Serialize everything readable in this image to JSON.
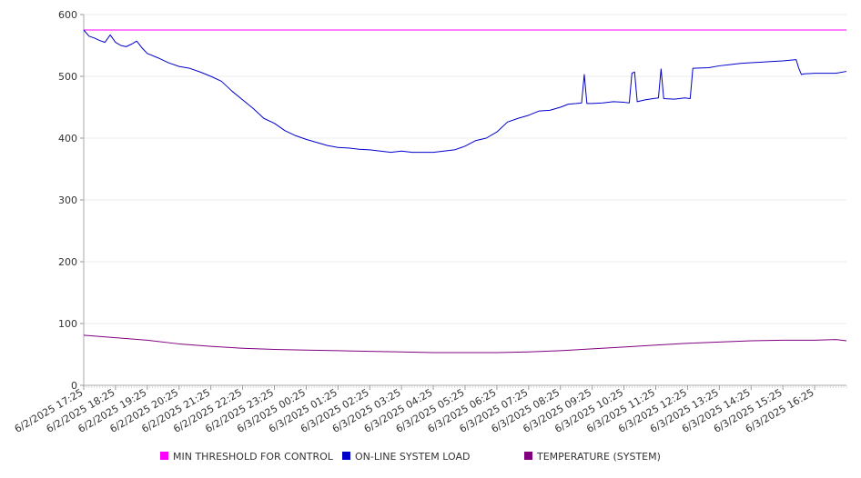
{
  "chart_data": {
    "type": "line",
    "title": "",
    "xlabel": "",
    "ylabel": "",
    "ylim": [
      0,
      600
    ],
    "y_ticks": [
      0,
      100,
      200,
      300,
      400,
      500,
      600
    ],
    "grid": "horizontal",
    "legend_position": "bottom",
    "x_tick_labels": [
      "6/2/2025 17:25",
      "6/2/2025 18:25",
      "6/2/2025 19:25",
      "6/2/2025 20:25",
      "6/2/2025 21:25",
      "6/2/2025 22:25",
      "6/2/2025 23:25",
      "6/3/2025 00:25",
      "6/3/2025 01:25",
      "6/3/2025 02:25",
      "6/3/2025 03:25",
      "6/3/2025 04:25",
      "6/3/2025 05:25",
      "6/3/2025 06:25",
      "6/3/2025 07:25",
      "6/3/2025 08:25",
      "6/3/2025 09:25",
      "6/3/2025 10:25",
      "6/3/2025 11:25",
      "6/3/2025 12:25",
      "6/3/2025 13:25",
      "6/3/2025 14:25",
      "6/3/2025 15:25",
      "6/3/2025 16:25"
    ],
    "x_start": "6/2/2025 17:25",
    "x_end": "6/3/2025 17:25",
    "series": [
      {
        "name": "MIN THRESHOLD FOR CONTROL",
        "color": "#ff00ff",
        "points": [
          [
            "6/2/2025 17:25",
            575
          ],
          [
            "6/3/2025 17:25",
            575
          ]
        ]
      },
      {
        "name": "ON-LINE SYSTEM LOAD",
        "color": "#0000cc",
        "points": [
          [
            "6/2/2025 17:25",
            575
          ],
          [
            "6/2/2025 17:35",
            565
          ],
          [
            "6/2/2025 17:45",
            562
          ],
          [
            "6/2/2025 17:55",
            558
          ],
          [
            "6/2/2025 18:05",
            555
          ],
          [
            "6/2/2025 18:15",
            567
          ],
          [
            "6/2/2025 18:25",
            555
          ],
          [
            "6/2/2025 18:35",
            550
          ],
          [
            "6/2/2025 18:45",
            548
          ],
          [
            "6/2/2025 18:55",
            552
          ],
          [
            "6/2/2025 19:05",
            557
          ],
          [
            "6/2/2025 19:15",
            546
          ],
          [
            "6/2/2025 19:25",
            537
          ],
          [
            "6/2/2025 19:45",
            530
          ],
          [
            "6/2/2025 20:05",
            522
          ],
          [
            "6/2/2025 20:25",
            516
          ],
          [
            "6/2/2025 20:45",
            513
          ],
          [
            "6/2/2025 21:05",
            507
          ],
          [
            "6/2/2025 21:25",
            500
          ],
          [
            "6/2/2025 21:45",
            492
          ],
          [
            "6/2/2025 22:05",
            476
          ],
          [
            "6/2/2025 22:25",
            462
          ],
          [
            "6/2/2025 22:45",
            448
          ],
          [
            "6/2/2025 23:05",
            432
          ],
          [
            "6/2/2025 23:25",
            424
          ],
          [
            "6/2/2025 23:45",
            412
          ],
          [
            "6/3/2025 00:05",
            404
          ],
          [
            "6/3/2025 00:25",
            398
          ],
          [
            "6/3/2025 00:45",
            393
          ],
          [
            "6/3/2025 01:05",
            388
          ],
          [
            "6/3/2025 01:25",
            385
          ],
          [
            "6/3/2025 01:45",
            384
          ],
          [
            "6/3/2025 02:05",
            382
          ],
          [
            "6/3/2025 02:25",
            381
          ],
          [
            "6/3/2025 02:45",
            379
          ],
          [
            "6/3/2025 03:05",
            377
          ],
          [
            "6/3/2025 03:25",
            379
          ],
          [
            "6/3/2025 03:45",
            377
          ],
          [
            "6/3/2025 04:25",
            377
          ],
          [
            "6/3/2025 04:45",
            379
          ],
          [
            "6/3/2025 05:05",
            381
          ],
          [
            "6/3/2025 05:25",
            387
          ],
          [
            "6/3/2025 05:45",
            396
          ],
          [
            "6/3/2025 06:05",
            400
          ],
          [
            "6/3/2025 06:25",
            410
          ],
          [
            "6/3/2025 06:45",
            426
          ],
          [
            "6/3/2025 07:05",
            432
          ],
          [
            "6/3/2025 07:25",
            437
          ],
          [
            "6/3/2025 07:45",
            444
          ],
          [
            "6/3/2025 08:05",
            445
          ],
          [
            "6/3/2025 08:25",
            450
          ],
          [
            "6/3/2025 08:40",
            455
          ],
          [
            "6/3/2025 08:55",
            456
          ],
          [
            "6/3/2025 09:05",
            457
          ],
          [
            "6/3/2025 09:10",
            503
          ],
          [
            "6/3/2025 09:15",
            456
          ],
          [
            "6/3/2025 09:25",
            456
          ],
          [
            "6/3/2025 09:45",
            457
          ],
          [
            "6/3/2025 10:05",
            459
          ],
          [
            "6/3/2025 10:25",
            458
          ],
          [
            "6/3/2025 10:35",
            457
          ],
          [
            "6/3/2025 10:40",
            505
          ],
          [
            "6/3/2025 10:45",
            507
          ],
          [
            "6/3/2025 10:50",
            459
          ],
          [
            "6/3/2025 11:05",
            462
          ],
          [
            "6/3/2025 11:20",
            464
          ],
          [
            "6/3/2025 11:30",
            465
          ],
          [
            "6/3/2025 11:35",
            512
          ],
          [
            "6/3/2025 11:40",
            464
          ],
          [
            "6/3/2025 12:00",
            463
          ],
          [
            "6/3/2025 12:20",
            465
          ],
          [
            "6/3/2025 12:30",
            464
          ],
          [
            "6/3/2025 12:35",
            513
          ],
          [
            "6/3/2025 13:05",
            514
          ],
          [
            "6/3/2025 13:25",
            517
          ],
          [
            "6/3/2025 13:45",
            519
          ],
          [
            "6/3/2025 14:05",
            521
          ],
          [
            "6/3/2025 14:25",
            522
          ],
          [
            "6/3/2025 14:45",
            523
          ],
          [
            "6/3/2025 15:05",
            524
          ],
          [
            "6/3/2025 15:25",
            525
          ],
          [
            "6/3/2025 15:50",
            527
          ],
          [
            "6/3/2025 15:55",
            513
          ],
          [
            "6/3/2025 16:00",
            503
          ],
          [
            "6/3/2025 16:05",
            504
          ],
          [
            "6/3/2025 16:25",
            505
          ],
          [
            "6/3/2025 16:45",
            505
          ],
          [
            "6/3/2025 17:05",
            505
          ],
          [
            "6/3/2025 17:25",
            508
          ]
        ]
      },
      {
        "name": "TEMPERATURE (SYSTEM)",
        "color": "#800080",
        "points": [
          [
            "6/2/2025 17:25",
            81
          ],
          [
            "6/2/2025 18:25",
            77
          ],
          [
            "6/2/2025 19:25",
            73
          ],
          [
            "6/2/2025 20:25",
            67
          ],
          [
            "6/2/2025 21:25",
            63
          ],
          [
            "6/2/2025 22:25",
            60
          ],
          [
            "6/2/2025 23:25",
            58
          ],
          [
            "6/3/2025 00:25",
            57
          ],
          [
            "6/3/2025 01:25",
            56
          ],
          [
            "6/3/2025 02:25",
            55
          ],
          [
            "6/3/2025 03:25",
            54
          ],
          [
            "6/3/2025 04:25",
            53
          ],
          [
            "6/3/2025 05:25",
            53
          ],
          [
            "6/3/2025 06:25",
            53
          ],
          [
            "6/3/2025 07:25",
            54
          ],
          [
            "6/3/2025 08:25",
            56
          ],
          [
            "6/3/2025 09:25",
            59
          ],
          [
            "6/3/2025 10:25",
            62
          ],
          [
            "6/3/2025 11:25",
            65
          ],
          [
            "6/3/2025 12:25",
            68
          ],
          [
            "6/3/2025 13:25",
            70
          ],
          [
            "6/3/2025 14:25",
            72
          ],
          [
            "6/3/2025 15:25",
            73
          ],
          [
            "6/3/2025 16:25",
            73
          ],
          [
            "6/3/2025 17:05",
            74
          ],
          [
            "6/3/2025 17:25",
            72
          ]
        ]
      }
    ]
  }
}
